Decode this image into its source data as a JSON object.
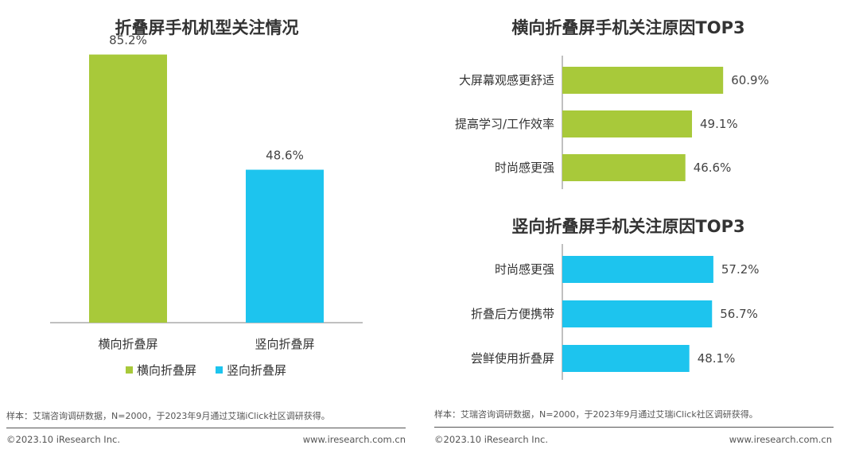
{
  "chart_data": [
    {
      "type": "bar",
      "title": "折叠屏手机机型关注情况",
      "categories": [
        "横向折叠屏",
        "竖向折叠屏"
      ],
      "values": [
        85.2,
        48.6
      ],
      "value_labels": [
        "85.2%",
        "48.6%"
      ],
      "colors": [
        "#a8c93a",
        "#1dc4ee"
      ],
      "legend": [
        "横向折叠屏",
        "竖向折叠屏"
      ],
      "legend_position": "bottom",
      "ylim": [
        0,
        100
      ],
      "grid": false
    },
    {
      "type": "bar",
      "orientation": "horizontal",
      "title": "横向折叠屏手机关注原因TOP3",
      "categories": [
        "大屏幕观感更舒适",
        "提高学习/工作效率",
        "时尚感更强"
      ],
      "values": [
        60.9,
        49.1,
        46.6
      ],
      "value_labels": [
        "60.9%",
        "49.1%",
        "46.6%"
      ],
      "color": "#a8c93a",
      "xlim": [
        0,
        100
      ],
      "grid": false
    },
    {
      "type": "bar",
      "orientation": "horizontal",
      "title": "竖向折叠屏手机关注原因TOP3",
      "categories": [
        "时尚感更强",
        "折叠后方便携带",
        "尝鲜使用折叠屏"
      ],
      "values": [
        57.2,
        56.7,
        48.1
      ],
      "value_labels": [
        "57.2%",
        "56.7%",
        "48.1%"
      ],
      "color": "#1dc4ee",
      "xlim": [
        0,
        100
      ],
      "grid": false
    }
  ],
  "notes": {
    "sample": "样本：艾瑞咨询调研数据，N=2000，于2023年9月通过艾瑞iClick社区调研获得。",
    "copyright": "©2023.10 iResearch Inc.",
    "website": "www.iresearch.com.cn"
  }
}
